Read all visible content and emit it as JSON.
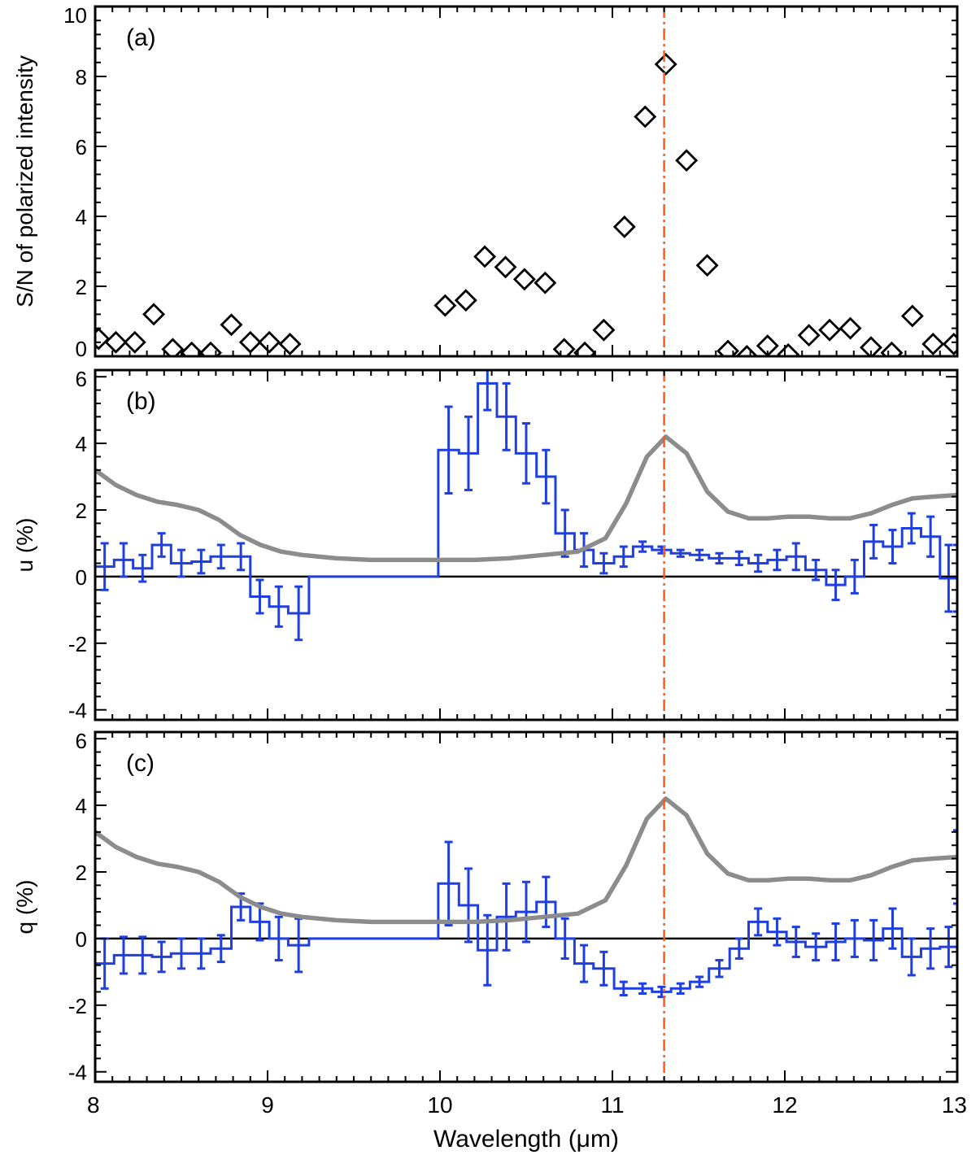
{
  "figure": {
    "xlabel": "Wavelength (μm)",
    "xticks": [
      "8",
      "9",
      "10",
      "11",
      "12",
      "13"
    ]
  },
  "chart_data": [
    {
      "type": "scatter",
      "panel_label": "(a)",
      "ylabel": "S/N of polarized intensity",
      "xlim": [
        8,
        13
      ],
      "ylim": [
        0,
        10
      ],
      "yticks": [
        "0",
        "2",
        "4",
        "6",
        "8",
        "10"
      ],
      "marker": "diamond",
      "vline_x": 11.3,
      "series": [
        {
          "x": [
            8.02,
            8.12,
            8.23,
            8.34,
            8.45,
            8.56,
            8.67,
            8.79,
            8.9,
            9.01,
            9.13,
            10.03,
            10.15,
            10.26,
            10.38,
            10.49,
            10.61,
            10.72,
            10.84,
            10.95,
            11.07,
            11.19,
            11.31,
            11.43,
            11.55,
            11.67,
            11.78,
            11.9,
            12.02,
            12.14,
            12.26,
            12.38,
            12.5,
            12.62,
            12.74,
            12.86,
            12.98
          ],
          "y": [
            0.5,
            0.4,
            0.4,
            1.2,
            0.2,
            0.1,
            0.1,
            0.9,
            0.4,
            0.4,
            0.35,
            1.45,
            1.6,
            2.85,
            2.55,
            2.2,
            2.1,
            0.2,
            0.1,
            0.75,
            3.7,
            6.85,
            8.35,
            5.6,
            2.6,
            0.15,
            0.0,
            0.3,
            0.05,
            0.6,
            0.75,
            0.8,
            0.25,
            0.1,
            1.15,
            0.35,
            0.35
          ]
        }
      ]
    },
    {
      "type": "line",
      "panel_label": "(b)",
      "ylabel": "u (%)",
      "xlim": [
        8,
        13
      ],
      "ylim": [
        -4.3,
        6.2
      ],
      "yticks": [
        "-4",
        "-2",
        "0",
        "2",
        "4",
        "6"
      ],
      "vline_x": 11.3,
      "series": [
        {
          "style": "step",
          "color": "#1f3fe0",
          "x": [
            8.0,
            8.11,
            8.22,
            8.33,
            8.44,
            8.56,
            8.67,
            8.79,
            8.9,
            9.01,
            9.12,
            9.24,
            9.99,
            10.11,
            10.22,
            10.33,
            10.44,
            10.56,
            10.67,
            10.78,
            10.89,
            11.01,
            11.12,
            11.23,
            11.34,
            11.45,
            11.56,
            11.68,
            11.79,
            11.9,
            12.01,
            12.12,
            12.24,
            12.35,
            12.46,
            12.57,
            12.68,
            12.79,
            12.9,
            13.0
          ],
          "y": [
            0.3,
            0.5,
            0.25,
            0.95,
            0.4,
            0.45,
            0.6,
            0.6,
            -0.6,
            -0.9,
            -1.1,
            0.0,
            3.8,
            3.7,
            5.8,
            4.8,
            3.7,
            3.0,
            1.3,
            0.8,
            0.4,
            0.6,
            0.9,
            0.8,
            0.7,
            0.65,
            0.55,
            0.55,
            0.4,
            0.5,
            0.6,
            0.2,
            -0.25,
            0.0,
            1.05,
            0.9,
            1.45,
            1.2,
            -0.05,
            -0.05
          ],
          "err": [
            0.7,
            0.5,
            0.4,
            0.35,
            0.4,
            0.35,
            0.35,
            0.4,
            0.5,
            0.6,
            0.8,
            0,
            1.3,
            1.1,
            0.8,
            1.0,
            0.9,
            0.8,
            0.7,
            0.5,
            0.3,
            0.3,
            0.15,
            0.1,
            0.1,
            0.15,
            0.15,
            0.2,
            0.25,
            0.3,
            0.4,
            0.3,
            0.45,
            0.5,
            0.5,
            0.5,
            0.45,
            0.6,
            1.0,
            1.0
          ]
        },
        {
          "style": "line",
          "color": "#8c8c8c",
          "x": [
            8.0,
            8.12,
            8.24,
            8.36,
            8.48,
            8.6,
            8.72,
            8.84,
            8.96,
            9.08,
            9.2,
            9.4,
            9.6,
            9.8,
            10.0,
            10.2,
            10.4,
            10.6,
            10.8,
            10.96,
            11.08,
            11.2,
            11.31,
            11.43,
            11.55,
            11.67,
            11.79,
            11.9,
            12.02,
            12.14,
            12.26,
            12.38,
            12.5,
            12.62,
            12.74,
            12.86,
            13.0
          ],
          "y": [
            3.2,
            2.75,
            2.45,
            2.25,
            2.15,
            2.0,
            1.7,
            1.25,
            0.95,
            0.75,
            0.65,
            0.55,
            0.5,
            0.5,
            0.5,
            0.5,
            0.55,
            0.65,
            0.75,
            1.15,
            2.2,
            3.6,
            4.2,
            3.7,
            2.55,
            1.95,
            1.75,
            1.75,
            1.8,
            1.8,
            1.75,
            1.75,
            1.9,
            2.15,
            2.35,
            2.4,
            2.45
          ]
        }
      ]
    },
    {
      "type": "line",
      "panel_label": "(c)",
      "ylabel": "q (%)",
      "xlim": [
        8,
        13
      ],
      "ylim": [
        -4.3,
        6.2
      ],
      "yticks": [
        "-4",
        "-2",
        "0",
        "2",
        "4",
        "6"
      ],
      "vline_x": 11.3,
      "series": [
        {
          "style": "step",
          "color": "#1f3fe0",
          "x": [
            8.0,
            8.11,
            8.22,
            8.33,
            8.44,
            8.56,
            8.67,
            8.79,
            8.9,
            9.01,
            9.12,
            9.24,
            9.99,
            10.11,
            10.22,
            10.33,
            10.44,
            10.56,
            10.67,
            10.78,
            10.89,
            11.01,
            11.12,
            11.23,
            11.34,
            11.45,
            11.56,
            11.68,
            11.79,
            11.9,
            12.01,
            12.12,
            12.24,
            12.35,
            12.46,
            12.57,
            12.68,
            12.79,
            12.9,
            13.0
          ],
          "y": [
            -0.75,
            -0.5,
            -0.5,
            -0.55,
            -0.45,
            -0.45,
            -0.3,
            0.95,
            0.5,
            0.0,
            -0.2,
            0.0,
            1.65,
            1.0,
            -0.35,
            0.65,
            0.8,
            1.1,
            0.0,
            -0.75,
            -0.9,
            -1.5,
            -1.5,
            -1.6,
            -1.5,
            -1.3,
            -0.9,
            -0.3,
            0.5,
            0.2,
            -0.1,
            -0.25,
            -0.1,
            0.0,
            -0.05,
            0.3,
            -0.55,
            -0.3,
            -0.25,
            2.15
          ],
          "err": [
            0.75,
            0.55,
            0.55,
            0.45,
            0.45,
            0.45,
            0.4,
            0.4,
            0.55,
            0.65,
            0.8,
            0,
            1.25,
            1.1,
            1.05,
            1.0,
            0.9,
            0.75,
            0.6,
            0.55,
            0.5,
            0.2,
            0.15,
            0.15,
            0.15,
            0.15,
            0.25,
            0.3,
            0.4,
            0.4,
            0.45,
            0.4,
            0.55,
            0.55,
            0.6,
            0.6,
            0.55,
            0.6,
            0.6,
            1.1
          ]
        },
        {
          "style": "line",
          "color": "#8c8c8c",
          "x": [
            8.0,
            8.12,
            8.24,
            8.36,
            8.48,
            8.6,
            8.72,
            8.84,
            8.96,
            9.08,
            9.2,
            9.4,
            9.6,
            9.8,
            10.0,
            10.2,
            10.4,
            10.6,
            10.8,
            10.96,
            11.08,
            11.2,
            11.31,
            11.43,
            11.55,
            11.67,
            11.79,
            11.9,
            12.02,
            12.14,
            12.26,
            12.38,
            12.5,
            12.62,
            12.74,
            12.86,
            13.0
          ],
          "y": [
            3.2,
            2.75,
            2.45,
            2.25,
            2.15,
            2.0,
            1.7,
            1.25,
            0.95,
            0.75,
            0.65,
            0.55,
            0.5,
            0.5,
            0.5,
            0.5,
            0.55,
            0.65,
            0.75,
            1.15,
            2.2,
            3.6,
            4.2,
            3.7,
            2.55,
            1.95,
            1.75,
            1.75,
            1.8,
            1.8,
            1.75,
            1.75,
            1.9,
            2.15,
            2.35,
            2.4,
            2.45
          ]
        }
      ]
    }
  ],
  "colors": {
    "axis": "#000000",
    "data_step": "#1f3fe0",
    "model_curve": "#8c8c8c",
    "vline": "#ff5a14"
  }
}
